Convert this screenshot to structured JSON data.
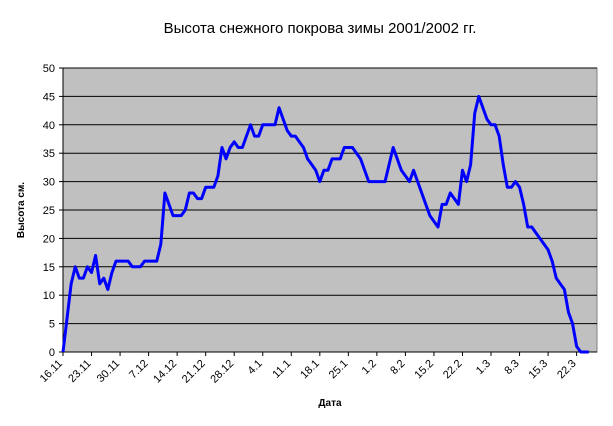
{
  "chart_data": {
    "type": "line",
    "title": "Высота снежного покрова зимы 2001/2002 гг.",
    "x_label": "Дата",
    "y_label": "Высота см.",
    "categories": [
      "16.11",
      null,
      null,
      null,
      null,
      null,
      null,
      "23.11",
      null,
      null,
      null,
      null,
      null,
      null,
      "30.11",
      null,
      null,
      null,
      null,
      null,
      null,
      "7.12",
      null,
      null,
      null,
      null,
      null,
      null,
      "14.12",
      null,
      null,
      null,
      null,
      null,
      null,
      "21.12",
      null,
      null,
      null,
      null,
      null,
      null,
      "28.12",
      null,
      null,
      null,
      null,
      null,
      null,
      "4.1",
      null,
      null,
      null,
      null,
      null,
      null,
      "11.1",
      null,
      null,
      null,
      null,
      null,
      null,
      "18.1",
      null,
      null,
      null,
      null,
      null,
      null,
      "25.1",
      null,
      null,
      null,
      null,
      null,
      null,
      "1.2",
      null,
      null,
      null,
      null,
      null,
      null,
      "8.2",
      null,
      null,
      null,
      null,
      null,
      null,
      "15.2",
      null,
      null,
      null,
      null,
      null,
      null,
      "22.2",
      null,
      null,
      null,
      null,
      null,
      null,
      "1.3",
      null,
      null,
      null,
      null,
      null,
      null,
      "8.3",
      null,
      null,
      null,
      null,
      null,
      null,
      "15.3",
      null,
      null,
      null,
      null,
      null,
      null,
      "22.3",
      null,
      null,
      null,
      null,
      null
    ],
    "values": [
      0,
      6,
      12,
      15,
      13,
      13,
      15,
      14,
      17,
      12,
      13,
      11,
      14,
      16,
      16,
      16,
      16,
      15,
      15,
      15,
      16,
      16,
      16,
      16,
      19,
      28,
      26,
      24,
      24,
      24,
      25,
      28,
      28,
      27,
      27,
      29,
      29,
      29,
      31,
      36,
      34,
      36,
      37,
      36,
      36,
      38,
      40,
      38,
      38,
      40,
      40,
      40,
      40,
      43,
      41,
      39,
      38,
      38,
      37,
      36,
      34,
      33,
      32,
      30,
      32,
      32,
      34,
      34,
      34,
      36,
      36,
      36,
      35,
      34,
      32,
      30,
      30,
      30,
      30,
      30,
      33,
      36,
      34,
      32,
      31,
      30,
      32,
      30,
      28,
      26,
      24,
      23,
      22,
      26,
      26,
      28,
      27,
      26,
      32,
      30,
      33,
      42,
      45,
      43,
      41,
      40,
      40,
      38,
      33,
      29,
      29,
      30,
      29,
      26,
      22,
      22,
      21,
      20,
      19,
      18,
      16,
      13,
      12,
      11,
      7,
      5,
      1,
      0,
      0,
      0,
      null,
      null
    ],
    "color": "#0000ff",
    "background": "#c0c0c0",
    "ylim": [
      0,
      50
    ],
    "yticks": [
      0,
      5,
      10,
      15,
      20,
      25,
      30,
      35,
      40,
      45,
      50
    ],
    "grid": true
  }
}
